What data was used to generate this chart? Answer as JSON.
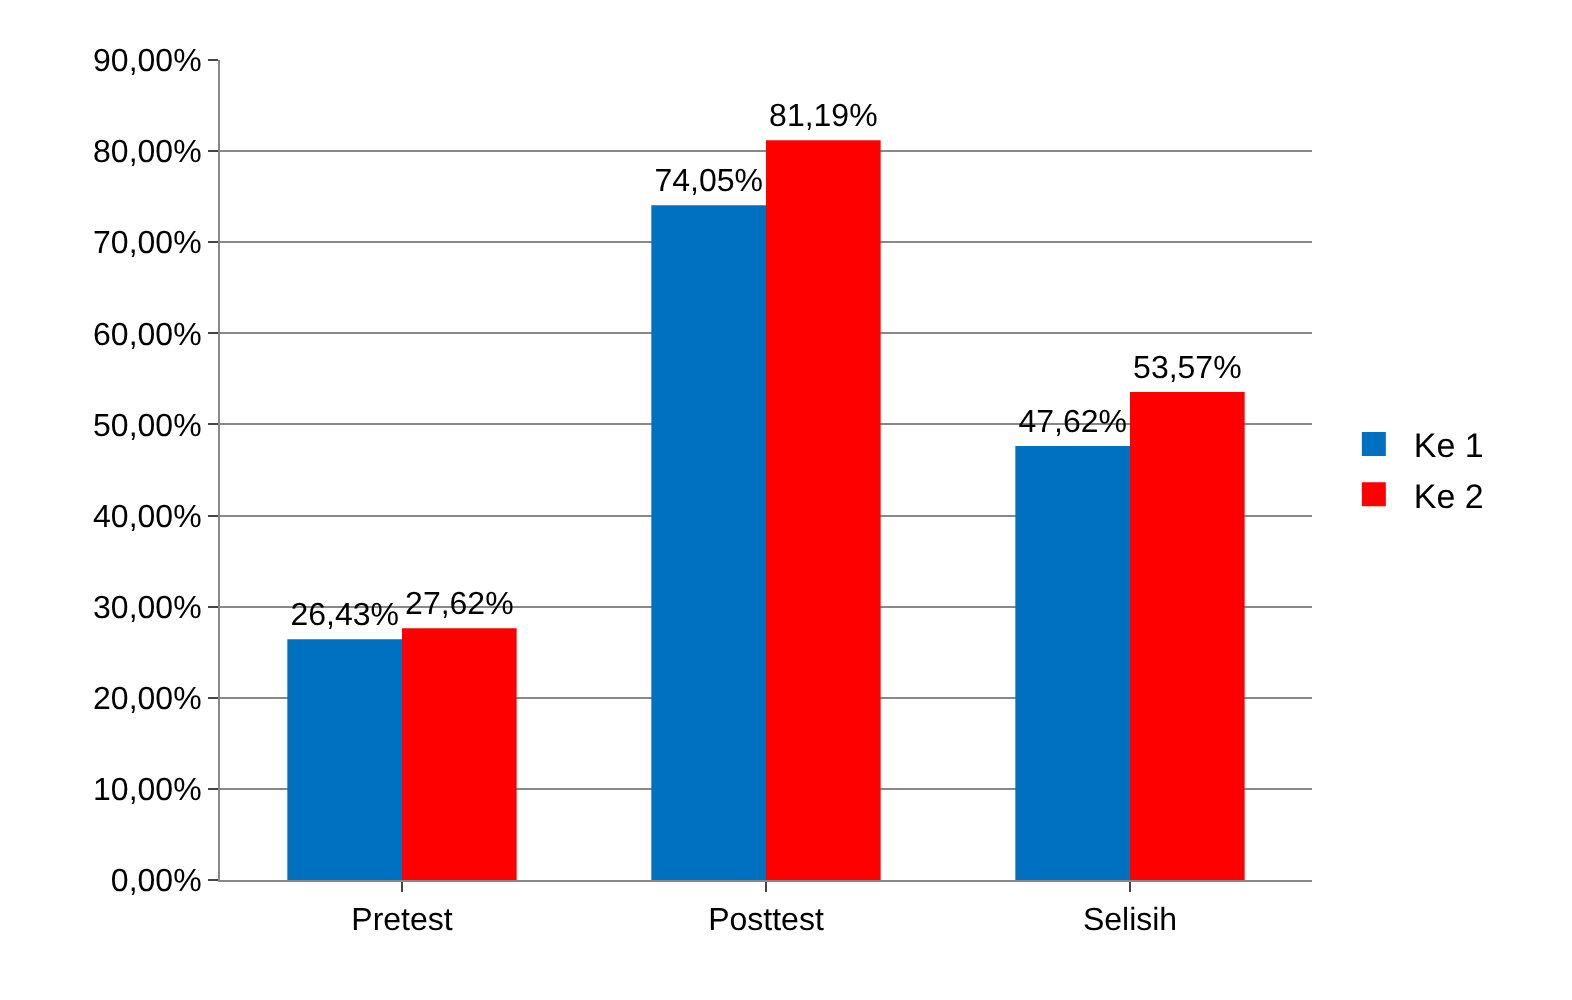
{
  "chart_data": {
    "type": "bar",
    "categories": [
      "Pretest",
      "Posttest",
      "Selisih"
    ],
    "series": [
      {
        "name": "Ke 1",
        "color": "#0070c0",
        "values": [
          26.43,
          74.05,
          47.62
        ],
        "value_labels": [
          "26,43%",
          "74,05%",
          "47,62%"
        ]
      },
      {
        "name": "Ke 2",
        "color": "#ff0000",
        "values": [
          27.62,
          81.19,
          53.57
        ],
        "value_labels": [
          "27,62%",
          "81,19%",
          "53,57%"
        ]
      }
    ],
    "ylim": [
      0,
      90
    ],
    "yticks": [
      {
        "value": 0,
        "label": "0,00%"
      },
      {
        "value": 10,
        "label": "10,00%"
      },
      {
        "value": 20,
        "label": "20,00%"
      },
      {
        "value": 30,
        "label": "30,00%"
      },
      {
        "value": 40,
        "label": "40,00%"
      },
      {
        "value": 50,
        "label": "50,00%"
      },
      {
        "value": 60,
        "label": "60,00%"
      },
      {
        "value": 70,
        "label": "70,00%"
      },
      {
        "value": 80,
        "label": "80,00%"
      },
      {
        "value": 90,
        "label": "90,00%"
      }
    ],
    "grid": "y",
    "legend": "right"
  }
}
